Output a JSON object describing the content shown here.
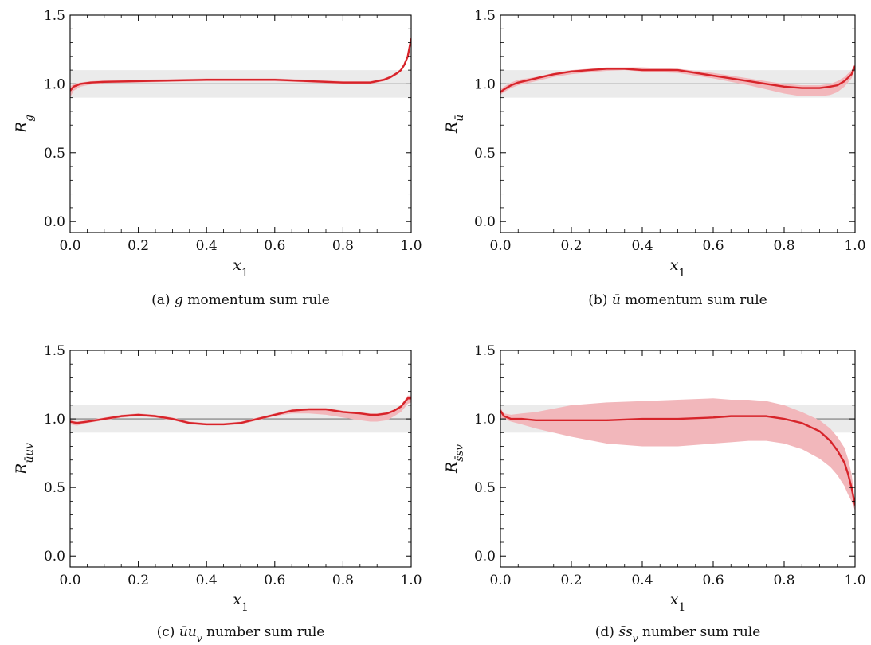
{
  "figure": {
    "colors": {
      "band": "#ebebeb",
      "reference_line": "#7a7a7a",
      "uncertainty": "#f2b7bb",
      "central": "#d7242a",
      "axes": "#000000"
    }
  },
  "chart_data": [
    {
      "type": "line",
      "id": "a",
      "caption": "(a) g momentum sum rule",
      "xlabel": "x1",
      "ylabel": "Rg",
      "xlim": [
        0,
        1
      ],
      "ylim": [
        -0.08,
        1.5
      ],
      "xticks": [
        "0.0",
        "0.2",
        "0.4",
        "0.6",
        "0.8",
        "1.0"
      ],
      "yticks": [
        "0.0",
        "0.5",
        "1.0",
        "1.5"
      ],
      "reference_y": 1.0,
      "band": [
        0.9,
        1.1
      ],
      "x": [
        0.0,
        0.01,
        0.03,
        0.06,
        0.1,
        0.2,
        0.3,
        0.4,
        0.5,
        0.6,
        0.7,
        0.8,
        0.85,
        0.88,
        0.9,
        0.92,
        0.94,
        0.96,
        0.97,
        0.98,
        0.99,
        1.0
      ],
      "series": [
        {
          "central": [
            0.95,
            0.98,
            1.0,
            1.01,
            1.015,
            1.02,
            1.025,
            1.03,
            1.03,
            1.03,
            1.02,
            1.01,
            1.01,
            1.01,
            1.02,
            1.03,
            1.05,
            1.08,
            1.1,
            1.14,
            1.2,
            1.33
          ],
          "lower": [
            0.9,
            0.95,
            0.98,
            0.995,
            1.005,
            1.01,
            1.015,
            1.02,
            1.02,
            1.02,
            1.01,
            1.0,
            1.0,
            1.0,
            1.01,
            1.02,
            1.04,
            1.07,
            1.09,
            1.13,
            1.19,
            1.3
          ],
          "upper": [
            0.98,
            1.0,
            1.01,
            1.02,
            1.025,
            1.03,
            1.035,
            1.04,
            1.04,
            1.04,
            1.03,
            1.02,
            1.02,
            1.02,
            1.03,
            1.04,
            1.06,
            1.09,
            1.11,
            1.15,
            1.22,
            1.35
          ]
        }
      ]
    },
    {
      "type": "line",
      "id": "b",
      "caption": "(b) ū momentum sum rule",
      "xlabel": "x1",
      "ylabel": "Rū",
      "xlim": [
        0,
        1
      ],
      "ylim": [
        -0.08,
        1.5
      ],
      "xticks": [
        "0.0",
        "0.2",
        "0.4",
        "0.6",
        "0.8",
        "1.0"
      ],
      "yticks": [
        "0.0",
        "0.5",
        "1.0",
        "1.5"
      ],
      "reference_y": 1.0,
      "band": [
        0.9,
        1.1
      ],
      "x": [
        0.0,
        0.01,
        0.03,
        0.05,
        0.1,
        0.15,
        0.2,
        0.25,
        0.3,
        0.35,
        0.4,
        0.5,
        0.6,
        0.7,
        0.75,
        0.8,
        0.85,
        0.9,
        0.93,
        0.95,
        0.97,
        0.99,
        1.0
      ],
      "series": [
        {
          "central": [
            0.94,
            0.96,
            0.99,
            1.01,
            1.04,
            1.07,
            1.09,
            1.1,
            1.11,
            1.11,
            1.1,
            1.1,
            1.06,
            1.02,
            1.0,
            0.98,
            0.97,
            0.97,
            0.98,
            0.99,
            1.02,
            1.07,
            1.13
          ],
          "lower": [
            0.92,
            0.94,
            0.97,
            0.99,
            1.02,
            1.05,
            1.07,
            1.085,
            1.095,
            1.1,
            1.09,
            1.08,
            1.04,
            0.99,
            0.96,
            0.93,
            0.91,
            0.91,
            0.92,
            0.94,
            0.98,
            1.04,
            1.1
          ],
          "upper": [
            0.96,
            0.98,
            1.01,
            1.03,
            1.05,
            1.08,
            1.1,
            1.11,
            1.12,
            1.12,
            1.12,
            1.11,
            1.08,
            1.04,
            1.02,
            1.0,
            0.99,
            0.99,
            1.0,
            1.02,
            1.05,
            1.1,
            1.15
          ]
        }
      ]
    },
    {
      "type": "line",
      "id": "c",
      "caption": "(c) ūu_v number sum rule",
      "xlabel": "x1",
      "ylabel": "Rūu_v",
      "xlim": [
        0,
        1
      ],
      "ylim": [
        -0.08,
        1.5
      ],
      "xticks": [
        "0.0",
        "0.2",
        "0.4",
        "0.6",
        "0.8",
        "1.0"
      ],
      "yticks": [
        "0.0",
        "0.5",
        "1.0",
        "1.5"
      ],
      "reference_y": 1.0,
      "band": [
        0.9,
        1.1
      ],
      "x": [
        0.0,
        0.02,
        0.05,
        0.1,
        0.15,
        0.2,
        0.25,
        0.3,
        0.35,
        0.4,
        0.45,
        0.5,
        0.55,
        0.6,
        0.65,
        0.7,
        0.75,
        0.8,
        0.85,
        0.88,
        0.9,
        0.93,
        0.95,
        0.97,
        0.99,
        1.0
      ],
      "series": [
        {
          "central": [
            0.98,
            0.97,
            0.98,
            1.0,
            1.02,
            1.03,
            1.02,
            1.0,
            0.97,
            0.96,
            0.96,
            0.97,
            1.0,
            1.03,
            1.06,
            1.07,
            1.07,
            1.05,
            1.04,
            1.03,
            1.03,
            1.04,
            1.06,
            1.09,
            1.15,
            1.15
          ],
          "lower": [
            0.96,
            0.95,
            0.97,
            0.99,
            1.01,
            1.02,
            1.01,
            0.99,
            0.96,
            0.955,
            0.955,
            0.96,
            0.99,
            1.02,
            1.04,
            1.04,
            1.03,
            1.01,
            0.99,
            0.98,
            0.98,
            0.99,
            1.02,
            1.05,
            1.11,
            1.12
          ],
          "upper": [
            0.99,
            0.98,
            0.99,
            1.01,
            1.03,
            1.04,
            1.03,
            1.01,
            0.98,
            0.97,
            0.97,
            0.98,
            1.01,
            1.04,
            1.07,
            1.08,
            1.08,
            1.06,
            1.05,
            1.04,
            1.04,
            1.05,
            1.07,
            1.1,
            1.17,
            1.17
          ]
        }
      ]
    },
    {
      "type": "line",
      "id": "d",
      "caption": "(d) s̄s_v number sum rule",
      "xlabel": "x1",
      "ylabel": "Rs̄s_v",
      "xlim": [
        0,
        1
      ],
      "ylim": [
        -0.08,
        1.5
      ],
      "xticks": [
        "0.0",
        "0.2",
        "0.4",
        "0.6",
        "0.8",
        "1.0"
      ],
      "yticks": [
        "0.0",
        "0.5",
        "1.0",
        "1.5"
      ],
      "reference_y": 1.0,
      "band": [
        0.9,
        1.1
      ],
      "x": [
        0.0,
        0.01,
        0.03,
        0.06,
        0.1,
        0.2,
        0.3,
        0.4,
        0.5,
        0.6,
        0.65,
        0.7,
        0.75,
        0.8,
        0.85,
        0.9,
        0.93,
        0.95,
        0.97,
        0.98,
        0.99,
        1.0
      ],
      "series": [
        {
          "central": [
            1.06,
            1.02,
            1.0,
            1.0,
            0.99,
            0.99,
            0.99,
            1.0,
            1.0,
            1.01,
            1.02,
            1.02,
            1.02,
            1.0,
            0.97,
            0.91,
            0.84,
            0.77,
            0.68,
            0.6,
            0.5,
            0.37
          ],
          "lower": [
            1.01,
            1.0,
            0.98,
            0.96,
            0.93,
            0.87,
            0.82,
            0.8,
            0.8,
            0.82,
            0.83,
            0.84,
            0.84,
            0.82,
            0.78,
            0.71,
            0.65,
            0.59,
            0.51,
            0.45,
            0.4,
            0.33
          ],
          "upper": [
            1.08,
            1.04,
            1.03,
            1.04,
            1.05,
            1.1,
            1.12,
            1.13,
            1.14,
            1.15,
            1.14,
            1.14,
            1.13,
            1.1,
            1.05,
            0.99,
            0.93,
            0.87,
            0.79,
            0.71,
            0.6,
            0.4
          ]
        }
      ]
    }
  ]
}
